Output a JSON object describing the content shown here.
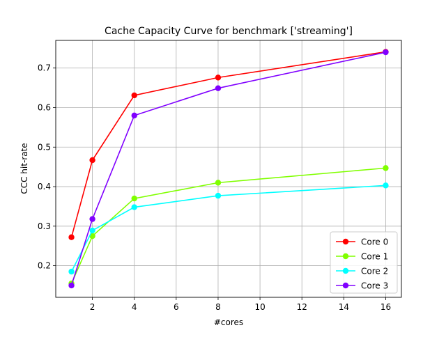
{
  "chart_data": {
    "type": "line",
    "title": "Cache Capacity Curve for benchmark ['streaming']",
    "xlabel": "#cores",
    "ylabel": "CCC hit-rate",
    "xlim": [
      0.25,
      16.75
    ],
    "ylim": [
      0.12,
      0.77
    ],
    "xticks": [
      2,
      4,
      6,
      8,
      10,
      12,
      14,
      16
    ],
    "yticks": [
      0.2,
      0.3,
      0.4,
      0.5,
      0.6,
      0.7
    ],
    "grid": true,
    "legend_position": "lower-right",
    "x": [
      1,
      2,
      4,
      8,
      16
    ],
    "series": [
      {
        "name": "Core 0",
        "color": "#ff0000",
        "values": [
          0.272,
          0.467,
          0.631,
          0.676,
          0.741
        ]
      },
      {
        "name": "Core 1",
        "color": "#80ff00",
        "values": [
          0.155,
          0.275,
          0.37,
          0.41,
          0.447
        ]
      },
      {
        "name": "Core 2",
        "color": "#00ffff",
        "values": [
          0.185,
          0.289,
          0.348,
          0.377,
          0.403
        ]
      },
      {
        "name": "Core 3",
        "color": "#8000ff",
        "values": [
          0.15,
          0.318,
          0.58,
          0.649,
          0.74
        ]
      }
    ]
  }
}
